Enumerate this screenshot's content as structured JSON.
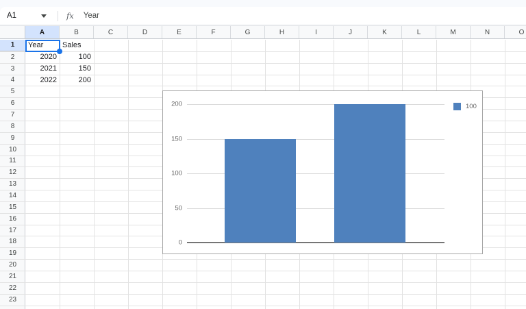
{
  "formula_bar": {
    "cell_ref": "A1",
    "fx_label": "fx",
    "formula": "Year"
  },
  "grid": {
    "columns": [
      "A",
      "B",
      "C",
      "D",
      "E",
      "F",
      "G",
      "H",
      "I",
      "J",
      "K",
      "L",
      "M",
      "N",
      "O"
    ],
    "rows": [
      "1",
      "2",
      "3",
      "4",
      "5",
      "6",
      "7",
      "8",
      "9",
      "10",
      "11",
      "12",
      "13",
      "14",
      "15",
      "16",
      "17",
      "18",
      "19",
      "20",
      "21",
      "22",
      "23"
    ],
    "selected_column": "A",
    "selected_row": "1",
    "selected_cell": "A1",
    "cells": [
      {
        "col": "A",
        "row": 1,
        "value": "Year",
        "align": "left"
      },
      {
        "col": "B",
        "row": 1,
        "value": "Sales",
        "align": "left"
      },
      {
        "col": "A",
        "row": 2,
        "value": "2020",
        "align": "right"
      },
      {
        "col": "B",
        "row": 2,
        "value": "100",
        "align": "right"
      },
      {
        "col": "A",
        "row": 3,
        "value": "2021",
        "align": "right"
      },
      {
        "col": "B",
        "row": 3,
        "value": "150",
        "align": "right"
      },
      {
        "col": "A",
        "row": 4,
        "value": "2022",
        "align": "right"
      },
      {
        "col": "B",
        "row": 4,
        "value": "200",
        "align": "right"
      }
    ]
  },
  "colors": {
    "accent": "#1a73e8",
    "header_selection_bg": "#d3e3fd",
    "bar_fill": "#4f81bd",
    "chart_grid_line": "#dadada",
    "chart_axis_line": "#757575"
  },
  "chart_data": {
    "type": "bar",
    "categories": [
      "",
      ""
    ],
    "series": [
      {
        "name": "100",
        "values": [
          150,
          200
        ]
      }
    ],
    "title": "",
    "xlabel": "",
    "ylabel": "",
    "ylim": [
      0,
      200
    ],
    "yticks": [
      0,
      50,
      100,
      150,
      200
    ],
    "grid": true,
    "legend_position": "top-right"
  }
}
